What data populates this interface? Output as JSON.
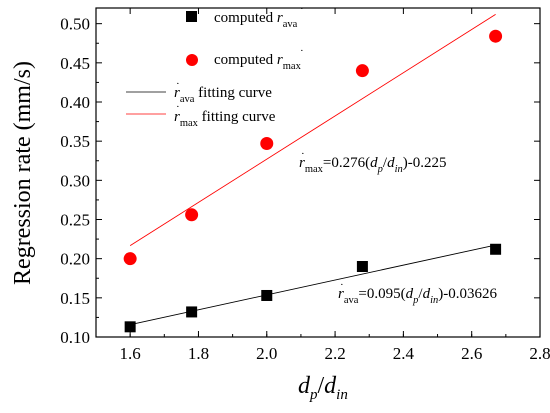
{
  "chart_data": {
    "type": "scatter",
    "xlabel": {
      "main": "d",
      "sub_1": "p",
      "slash": "/",
      "main_2": "d",
      "sub_2": "in"
    },
    "ylabel": "Regression rate (mm/s)",
    "xlim": [
      1.5,
      2.8
    ],
    "ylim": [
      0.1,
      0.52
    ],
    "x_ticks": [
      "1.6",
      "1.8",
      "2.0",
      "2.2",
      "2.4",
      "2.6",
      "2.8"
    ],
    "y_ticks": [
      "0.10",
      "0.15",
      "0.20",
      "0.25",
      "0.30",
      "0.35",
      "0.40",
      "0.45",
      "0.50"
    ],
    "x_tick_values": [
      1.6,
      1.8,
      2.0,
      2.2,
      2.4,
      2.6,
      2.8
    ],
    "y_tick_values": [
      0.1,
      0.15,
      0.2,
      0.25,
      0.3,
      0.35,
      0.4,
      0.45,
      0.5
    ],
    "legend_position": "top-left",
    "grid": false,
    "series": [
      {
        "key": "ava",
        "name": {
          "prefix": "computed ",
          "var": "r",
          "sub": "ava"
        },
        "marker": "square",
        "color": "#000000",
        "x": [
          1.6,
          1.78,
          2.0,
          2.28,
          2.67
        ],
        "y": [
          0.113,
          0.132,
          0.153,
          0.19,
          0.212
        ]
      },
      {
        "key": "max",
        "name": {
          "prefix": "computed ",
          "var": "r",
          "sub": "max"
        },
        "marker": "circle",
        "color": "#ff0000",
        "x": [
          1.6,
          1.78,
          2.0,
          2.28,
          2.67
        ],
        "y": [
          0.2,
          0.256,
          0.347,
          0.44,
          0.484
        ]
      }
    ],
    "fits": [
      {
        "key": "ava",
        "name": {
          "var": "r",
          "sub": "ava",
          "suffix": " fitting curve"
        },
        "color": "#000000",
        "slope": 0.095,
        "intercept": -0.03626,
        "x_range": [
          1.6,
          2.67
        ],
        "equation": {
          "var": "r",
          "sub": "ava",
          "text1": "=0.095(",
          "d1": "d",
          "s1": "p",
          "slash": "/",
          "d2": "d",
          "s2": "in",
          "text2": ")-0.03626"
        }
      },
      {
        "key": "max",
        "name": {
          "var": "r",
          "sub": "max",
          "suffix": " fitting curve"
        },
        "color": "#ff0000",
        "slope": 0.276,
        "intercept": -0.225,
        "x_range": [
          1.6,
          2.67
        ],
        "equation": {
          "var": "r",
          "sub": "max",
          "text1": "=0.276(",
          "d1": "d",
          "s1": "p",
          "slash": "/",
          "d2": "d",
          "s2": "in",
          "text2": ")-0.225"
        }
      }
    ]
  }
}
